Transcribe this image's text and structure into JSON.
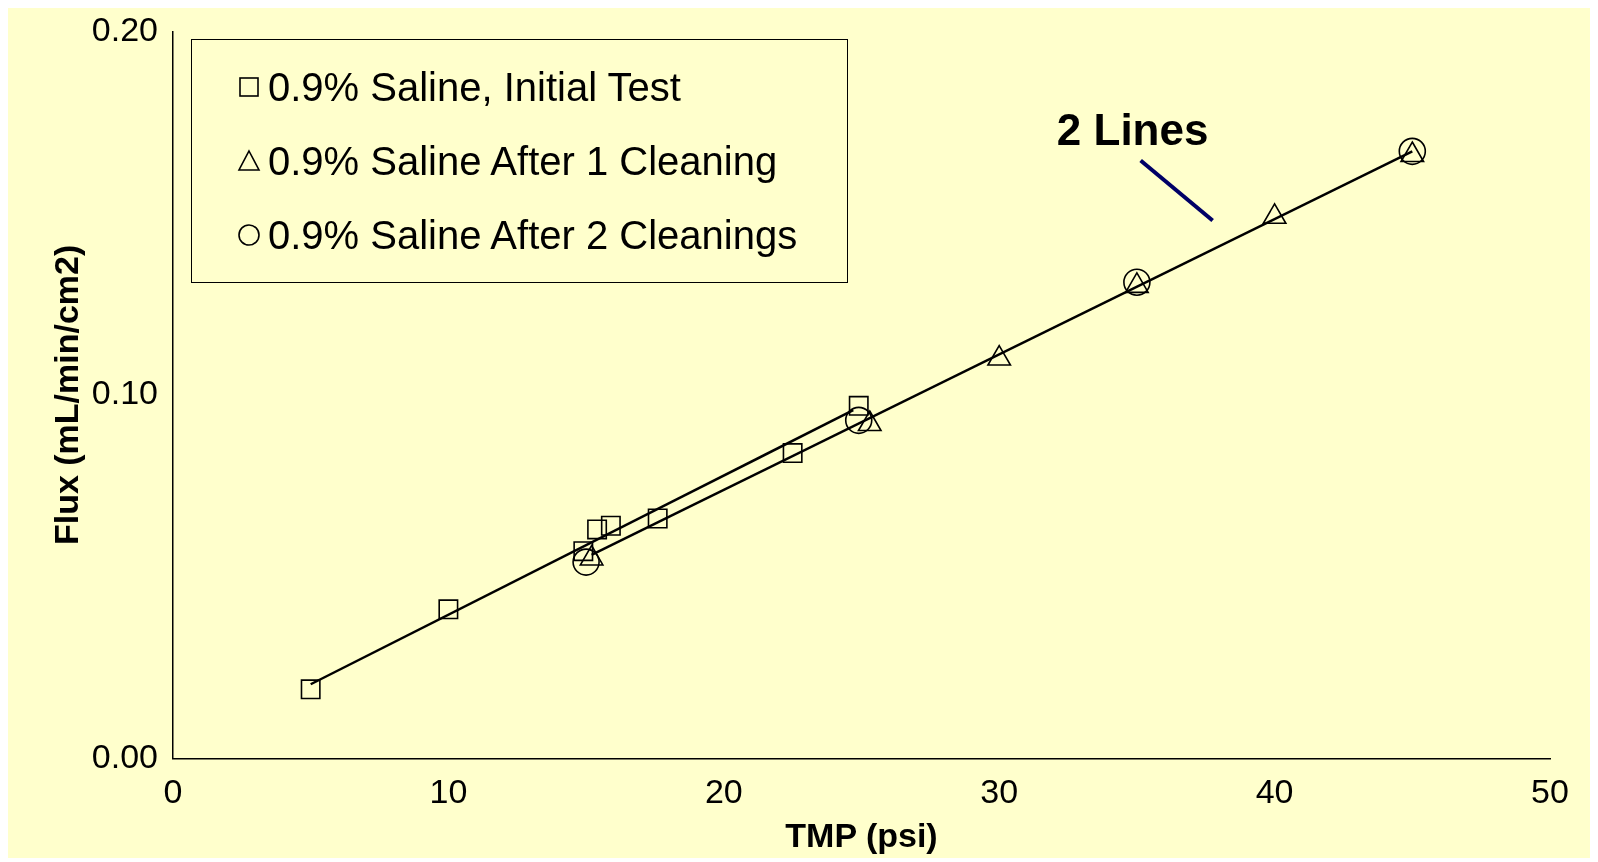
{
  "chart_data": {
    "type": "scatter",
    "xlabel": "TMP (psi)",
    "ylabel": "Flux (mL/min/cm2)",
    "xlim": [
      0,
      50
    ],
    "xticks": [
      0,
      10,
      20,
      30,
      40,
      50
    ],
    "ylim": [
      0,
      0.2
    ],
    "yticks": [
      {
        "value": 0,
        "label": "0.00"
      },
      {
        "value": 0.1,
        "label": "0.10"
      },
      {
        "value": 0.2,
        "label": "0.20"
      }
    ],
    "grid": false,
    "legend": "top left",
    "series": [
      {
        "name": "0.9% Saline, Initial Test",
        "color": "#000000",
        "marker": "square",
        "x": [
          5,
          10,
          14.9,
          15.4,
          15.9,
          17.6,
          22.5,
          24.9
        ],
        "values": [
          0.019,
          0.041,
          0.057,
          0.063,
          0.064,
          0.066,
          0.084,
          0.097
        ]
      },
      {
        "name": "0.9% Saline After 1 Cleaning",
        "color": "#000000",
        "marker": "triangle",
        "x": [
          15.2,
          25.3,
          30,
          35,
          40,
          45
        ],
        "values": [
          0.055,
          0.092,
          0.11,
          0.13,
          0.149,
          0.166
        ]
      },
      {
        "name": "0.9% Saline After 2 Cleanings",
        "color": "#000000",
        "marker": "circle",
        "x": [
          15,
          24.9,
          35,
          45
        ],
        "values": [
          0.054,
          0.093,
          0.131,
          0.167
        ]
      },
      {
        "type": "line",
        "color": "#000000",
        "marker": "none",
        "x": [
          5,
          24.7
        ],
        "values": [
          0.0204,
          0.0958
        ]
      },
      {
        "type": "line",
        "color": "#000000",
        "marker": "none",
        "x": [
          15.2,
          45
        ],
        "values": [
          0.056,
          0.167
        ]
      }
    ],
    "annotations": [
      "2 Lines"
    ]
  }
}
